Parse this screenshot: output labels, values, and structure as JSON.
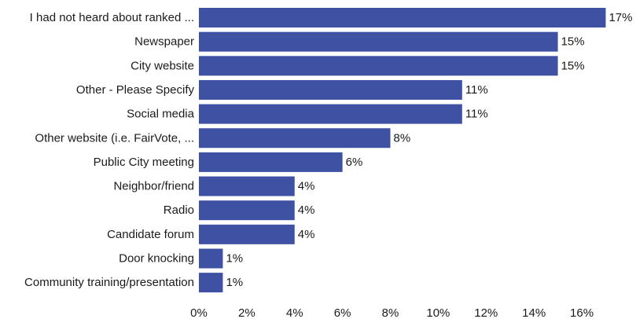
{
  "chart_data": {
    "type": "bar",
    "orientation": "horizontal",
    "title": "",
    "xlabel": "",
    "ylabel": "",
    "xlim": [
      0,
      16.5
    ],
    "grid": false,
    "legend": "none",
    "bar_color": "#3f51a3",
    "categories": [
      "I had not heard about ranked ...",
      "Newspaper",
      "City website",
      "Other - Please Specify",
      "Social media",
      "Other website (i.e. FairVote, ...",
      "Public City meeting",
      "Neighbor/friend",
      "Radio",
      "Candidate forum",
      "Door knocking",
      "Community training/presentation"
    ],
    "values": [
      17,
      15,
      15,
      11,
      11,
      8,
      6,
      4,
      4,
      4,
      1,
      1
    ],
    "value_labels": [
      "17%",
      "15%",
      "15%",
      "11%",
      "11%",
      "8%",
      "6%",
      "4%",
      "4%",
      "4%",
      "1%",
      "1%"
    ],
    "x_ticks": [
      0,
      2,
      4,
      6,
      8,
      10,
      12,
      14,
      16
    ],
    "x_tick_labels": [
      "0%",
      "2%",
      "4%",
      "6%",
      "8%",
      "10%",
      "12%",
      "14%",
      "16%"
    ]
  }
}
